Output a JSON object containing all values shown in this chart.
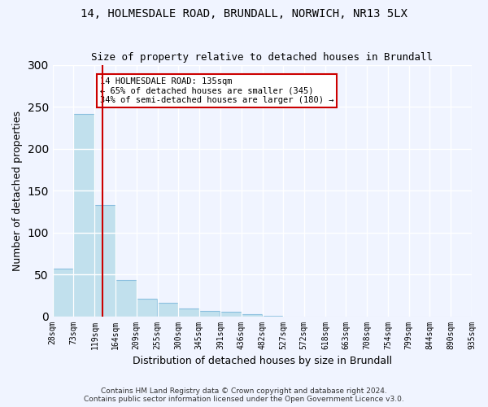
{
  "title_line1": "14, HOLMESDALE ROAD, BRUNDALL, NORWICH, NR13 5LX",
  "title_line2": "Size of property relative to detached houses in Brundall",
  "xlabel": "Distribution of detached houses by size in Brundall",
  "ylabel": "Number of detached properties",
  "footer_line1": "Contains HM Land Registry data © Crown copyright and database right 2024.",
  "footer_line2": "Contains public sector information licensed under the Open Government Licence v3.0.",
  "bin_labels": [
    "28sqm",
    "73sqm",
    "119sqm",
    "164sqm",
    "209sqm",
    "255sqm",
    "300sqm",
    "345sqm",
    "391sqm",
    "436sqm",
    "482sqm",
    "527sqm",
    "572sqm",
    "618sqm",
    "663sqm",
    "708sqm",
    "754sqm",
    "799sqm",
    "844sqm",
    "890sqm",
    "935sqm"
  ],
  "bar_values": [
    57,
    241,
    133,
    43,
    21,
    16,
    9,
    6,
    5,
    2,
    1,
    0,
    0,
    0,
    0,
    0,
    0,
    0,
    0,
    0
  ],
  "bar_color": "#add8e6",
  "bar_edge_color": "#6baed6",
  "bar_alpha": 0.7,
  "vline_x": 135,
  "vline_color": "#cc0000",
  "annotation_text": "14 HOLMESDALE ROAD: 135sqm\n← 65% of detached houses are smaller (345)\n34% of semi-detached houses are larger (180) →",
  "annotation_box_color": "#cc0000",
  "ylim": [
    0,
    300
  ],
  "yticks": [
    0,
    50,
    100,
    150,
    200,
    250,
    300
  ],
  "property_size": 135,
  "bin_edges": [
    28,
    73,
    119,
    164,
    209,
    255,
    300,
    345,
    391,
    436,
    482,
    527,
    572,
    618,
    663,
    708,
    754,
    799,
    844,
    890,
    935
  ],
  "background_color": "#f0f4ff",
  "plot_background": "#f0f4ff"
}
